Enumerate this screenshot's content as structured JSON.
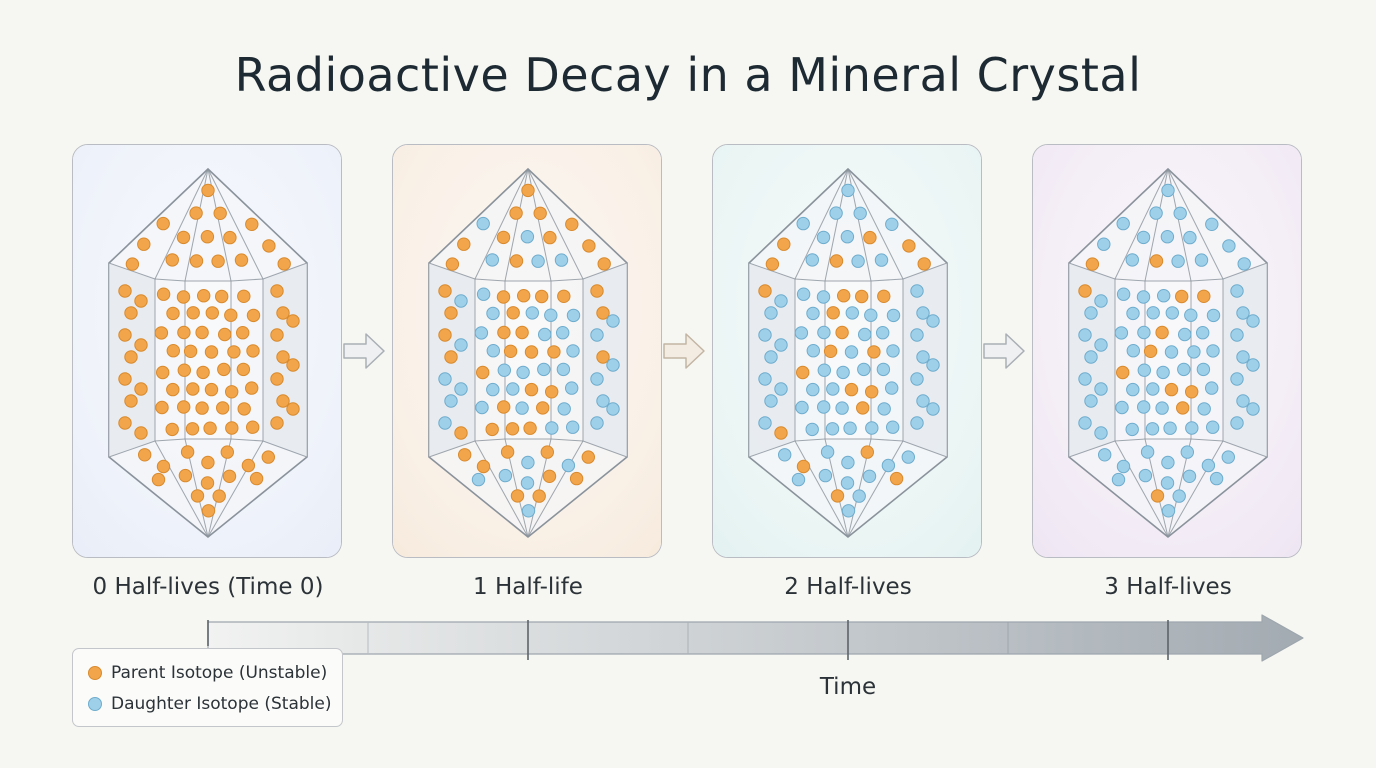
{
  "title": "Radioactive Decay in a Mineral Crystal",
  "colors": {
    "parent": "#f2a54a",
    "daughter": "#9fd0ea",
    "panel_bg": [
      "#e9eef8",
      "#f7ebde",
      "#e4f2f1",
      "#efe6f3"
    ],
    "timeline": "#9ea6ae"
  },
  "stages": [
    {
      "label": "0 Half-lives (Time 0)",
      "half_lives": 0,
      "parent_fraction": 1.0
    },
    {
      "label": "1 Half-life",
      "half_lives": 1,
      "parent_fraction": 0.5
    },
    {
      "label": "2 Half-lives",
      "half_lives": 2,
      "parent_fraction": 0.25
    },
    {
      "label": "3 Half-lives",
      "half_lives": 3,
      "parent_fraction": 0.125
    }
  ],
  "timeline": {
    "label": "Time"
  },
  "legend": {
    "parent": "Parent Isotope (Unstable)",
    "daughter": "Daughter Isotope (Stable)"
  }
}
